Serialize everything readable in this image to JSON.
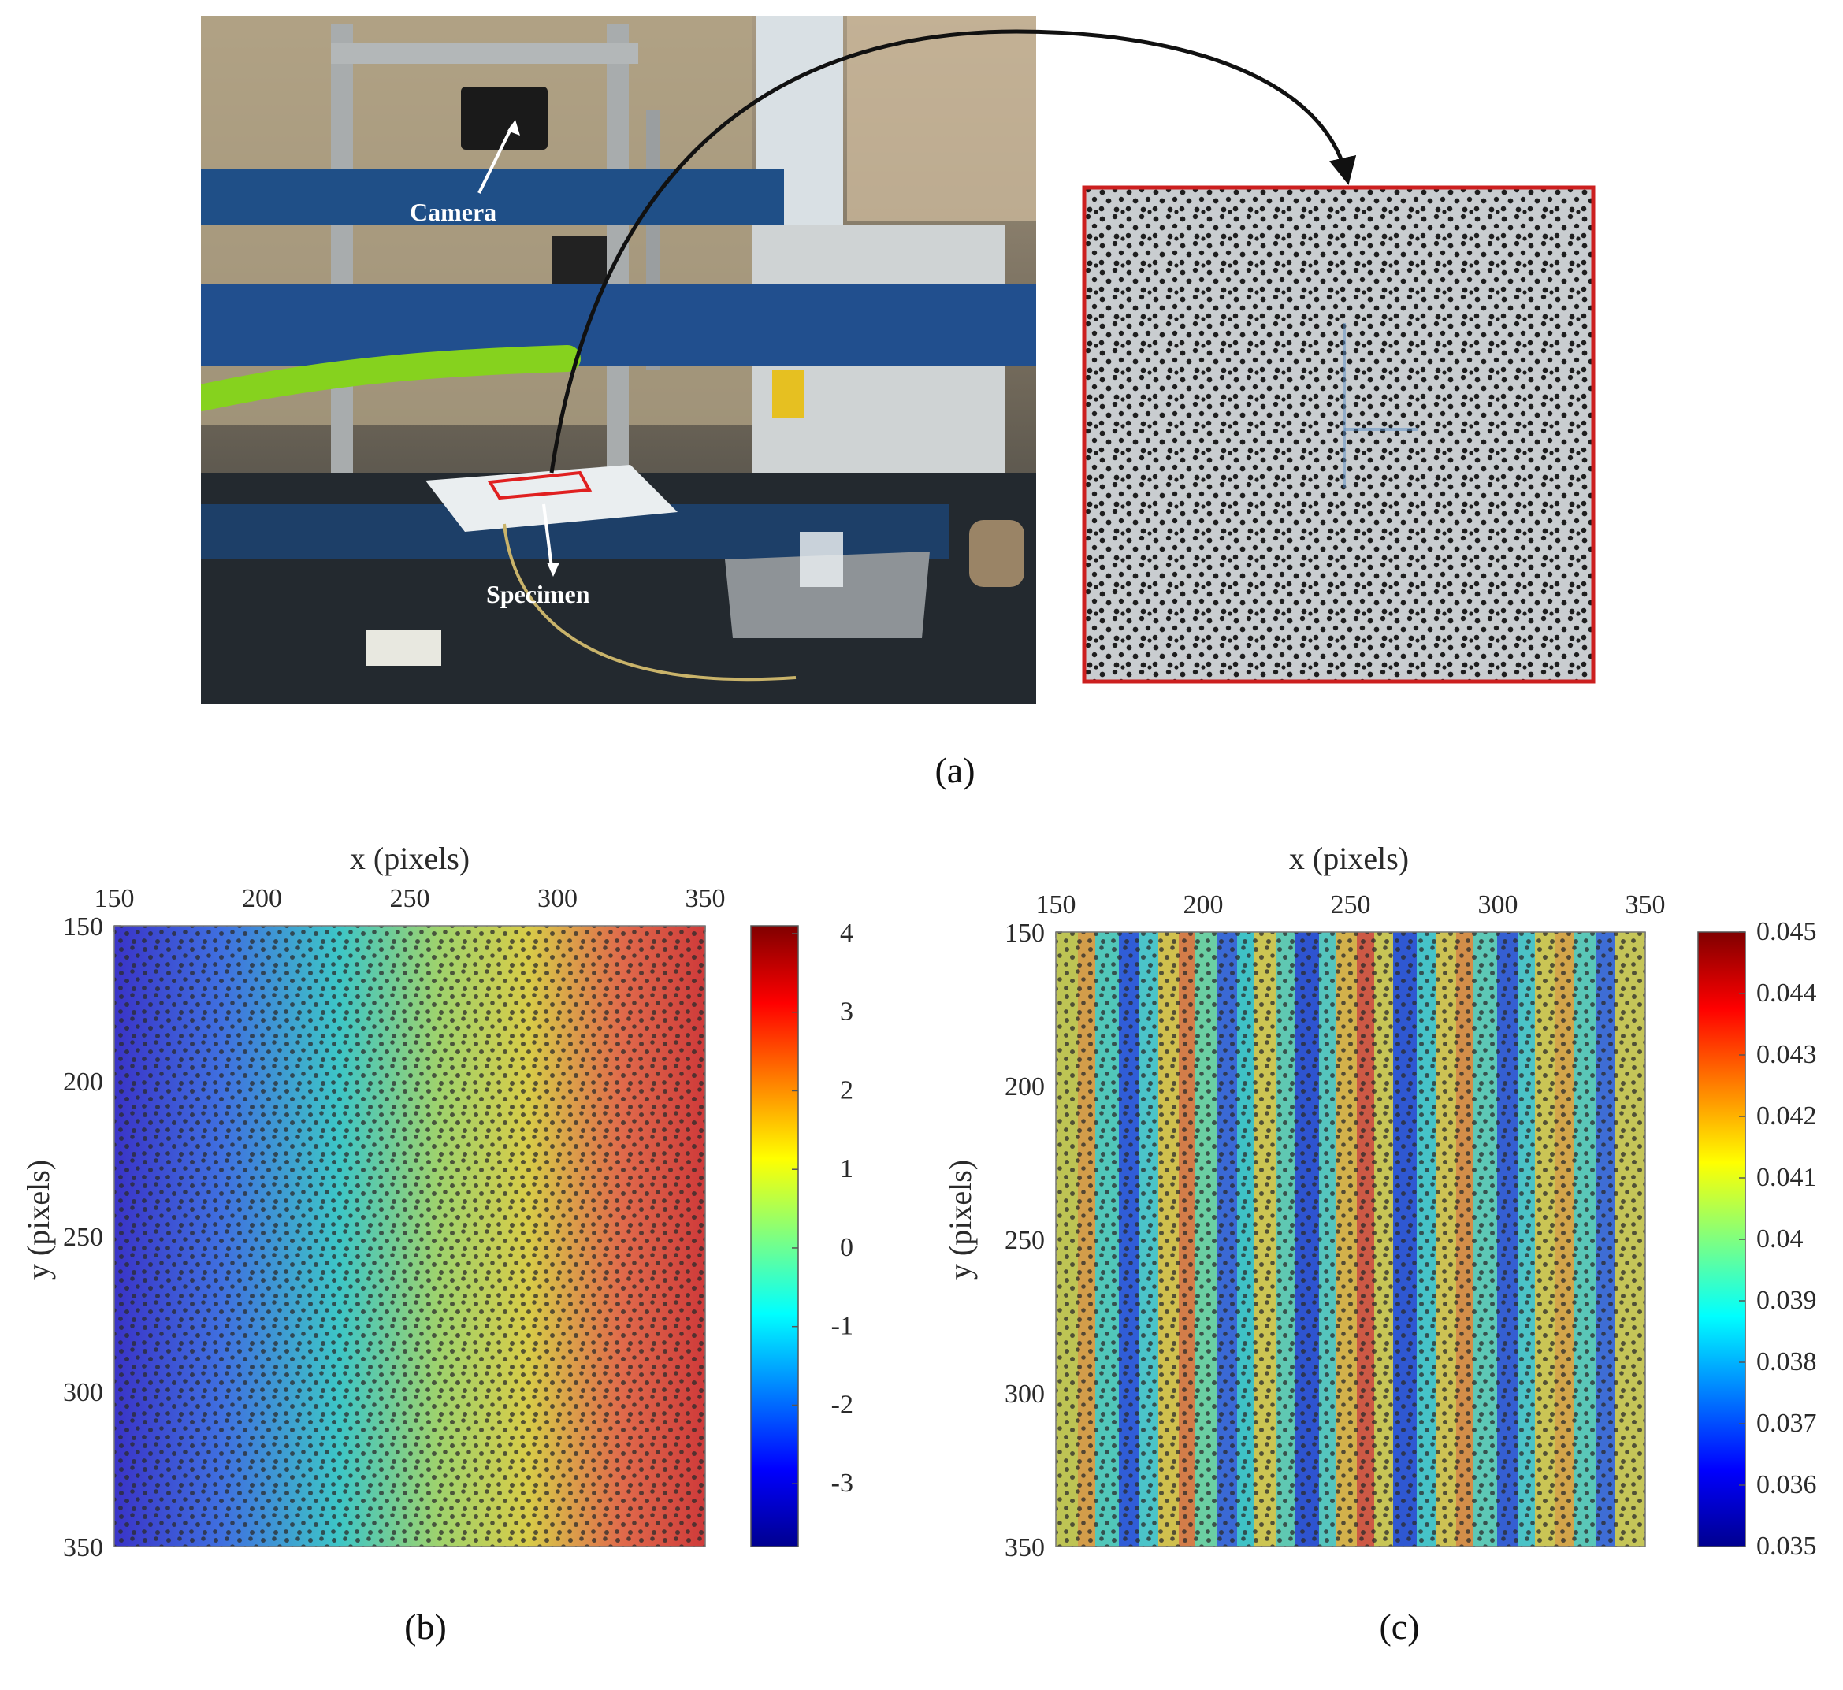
{
  "figure": {
    "panel_a": {
      "caption": "(a)",
      "photo_labels": {
        "camera": "Camera",
        "specimen": "Specimen"
      }
    },
    "panel_b": {
      "caption": "(b)"
    },
    "panel_c": {
      "caption": "(c)"
    }
  },
  "colors": {
    "inset_border": "#cc1f1f",
    "arrow": "#111111",
    "specimen_marker": "#e02020"
  },
  "chart_data": [
    {
      "id": "b",
      "type": "heatmap",
      "xlabel": "x (pixels)",
      "ylabel": "y (pixels)",
      "xlim": [
        150,
        350
      ],
      "ylim": [
        150,
        350
      ],
      "y_reversed": true,
      "x_axis_position": "top",
      "xticks": [
        "150",
        "200",
        "250",
        "300",
        "350"
      ],
      "yticks": [
        "150",
        "200",
        "250",
        "300",
        "350"
      ],
      "field": "linear gradient along x",
      "value_at_x": {
        "x": [
          150,
          350
        ],
        "v": [
          -3.8,
          4.0
        ]
      },
      "colorbar": {
        "ticks": [
          "4",
          "3",
          "2",
          "1",
          "0",
          "-1",
          "-2",
          "-3"
        ],
        "range": [
          -3.8,
          4.1
        ],
        "colormap": "jet"
      }
    },
    {
      "id": "c",
      "type": "heatmap",
      "xlabel": "x (pixels)",
      "ylabel": "y (pixels)",
      "xlim": [
        150,
        350
      ],
      "ylim": [
        150,
        350
      ],
      "y_reversed": true,
      "x_axis_position": "top",
      "xticks": [
        "150",
        "200",
        "250",
        "300",
        "350"
      ],
      "yticks": [
        "150",
        "200",
        "250",
        "300",
        "350"
      ],
      "field": "vertical stripes along x",
      "colorbar": {
        "ticks": [
          "0.045",
          "0.044",
          "0.043",
          "0.042",
          "0.041",
          "0.04",
          "0.039",
          "0.038",
          "0.037",
          "0.036",
          "0.035"
        ],
        "range": [
          0.035,
          0.045
        ],
        "colormap": "jet"
      }
    }
  ]
}
